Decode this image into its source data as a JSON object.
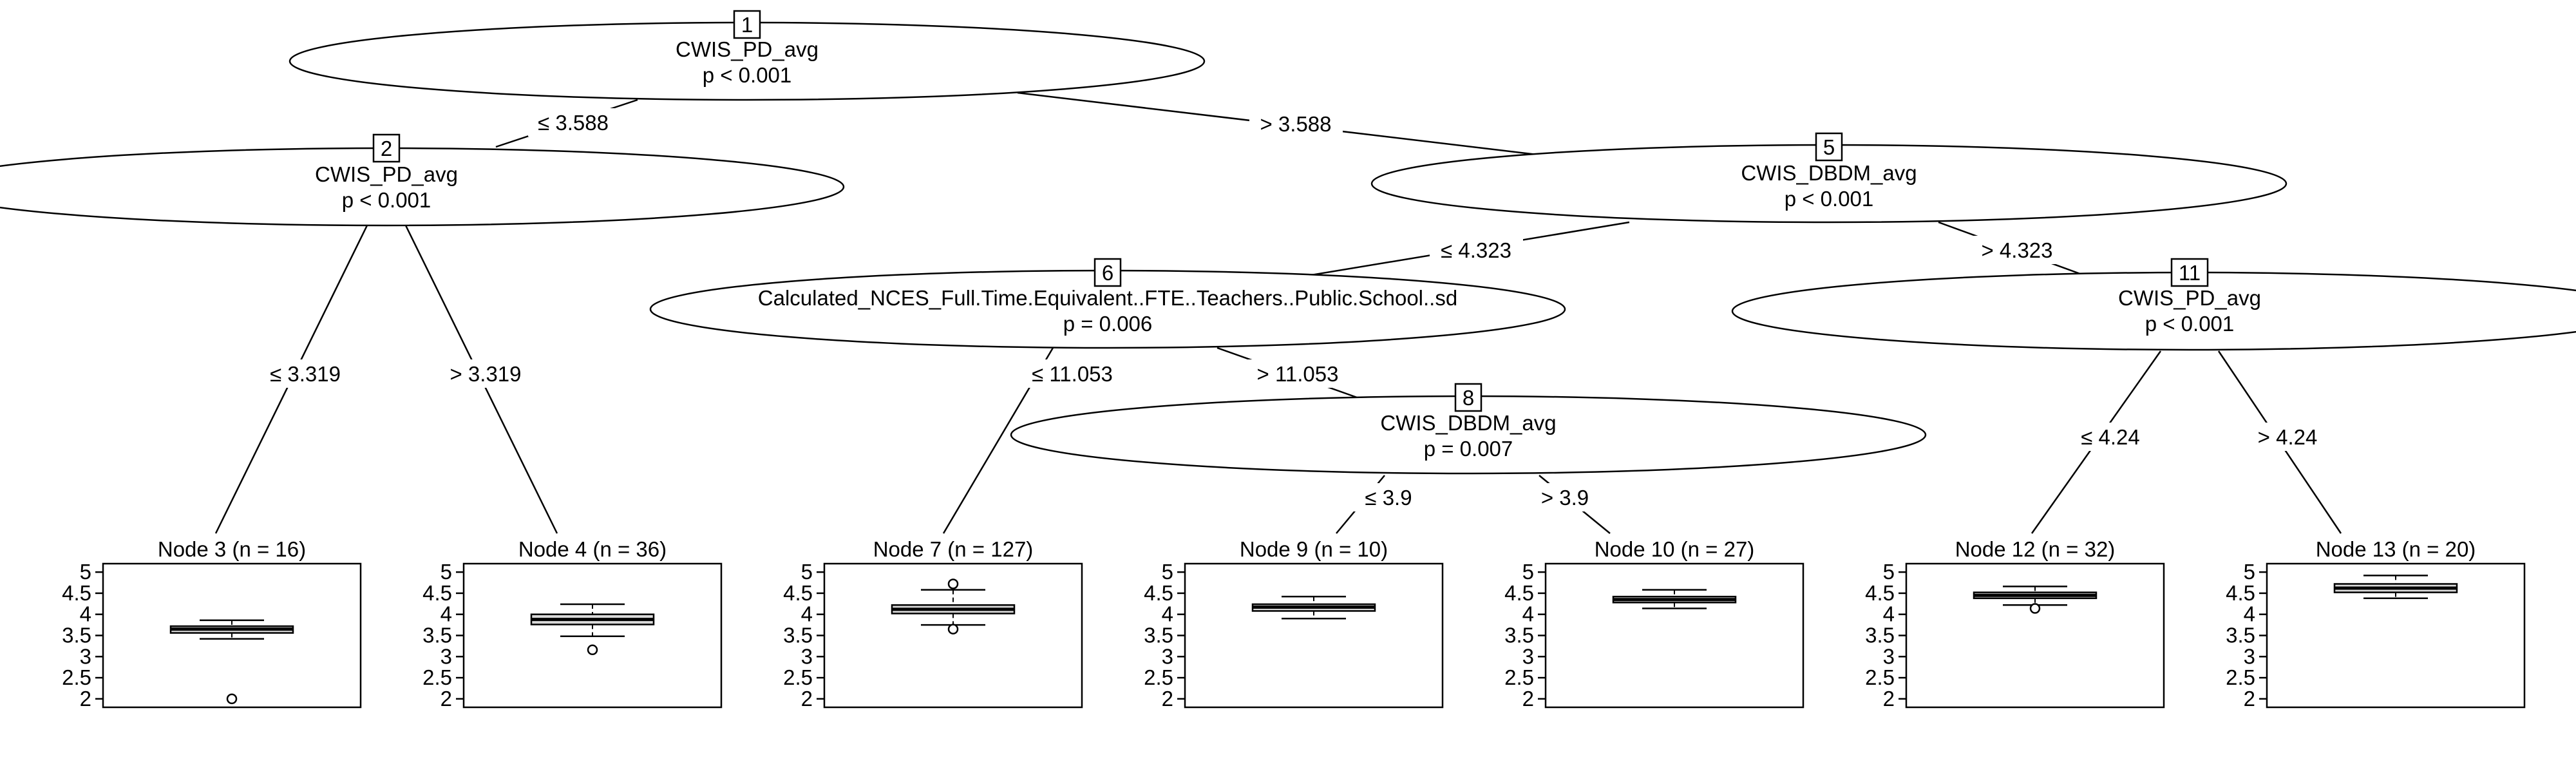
{
  "inner_nodes": [
    {
      "id": "1",
      "variable": "CWIS_PD_avg",
      "p": "p < 0.001"
    },
    {
      "id": "2",
      "variable": "CWIS_PD_avg",
      "p": "p < 0.001"
    },
    {
      "id": "5",
      "variable": "CWIS_DBDM_avg",
      "p": "p < 0.001"
    },
    {
      "id": "6",
      "variable": "Calculated_NCES_Full.Time.Equivalent..FTE..Teachers..Public.School..sd",
      "p": "p = 0.006"
    },
    {
      "id": "8",
      "variable": "CWIS_DBDM_avg",
      "p": "p = 0.007"
    },
    {
      "id": "11",
      "variable": "CWIS_PD_avg",
      "p": "p < 0.001"
    }
  ],
  "edges": [
    {
      "from": "1",
      "to": "2",
      "label": "≤ 3.588"
    },
    {
      "from": "1",
      "to": "5",
      "label": "> 3.588"
    },
    {
      "from": "2",
      "to": "3",
      "label": "≤ 3.319"
    },
    {
      "from": "2",
      "to": "4",
      "label": "> 3.319"
    },
    {
      "from": "5",
      "to": "6",
      "label": "≤ 4.323"
    },
    {
      "from": "5",
      "to": "11",
      "label": "> 4.323"
    },
    {
      "from": "6",
      "to": "7",
      "label": "≤ 11.053"
    },
    {
      "from": "6",
      "to": "8",
      "label": "> 11.053"
    },
    {
      "from": "8",
      "to": "9",
      "label": "≤ 3.9"
    },
    {
      "from": "8",
      "to": "10",
      "label": "> 3.9"
    },
    {
      "from": "11",
      "to": "12",
      "label": "≤ 4.24"
    },
    {
      "from": "11",
      "to": "13",
      "label": "> 4.24"
    }
  ],
  "leaves": [
    {
      "id": "3",
      "title": "Node 3 (n = 16)",
      "box": {
        "min": 3.42,
        "q1": 3.56,
        "median": 3.65,
        "q3": 3.72,
        "max": 3.86,
        "outliers": [
          2.0
        ]
      }
    },
    {
      "id": "4",
      "title": "Node 4 (n = 36)",
      "box": {
        "min": 3.48,
        "q1": 3.76,
        "median": 3.88,
        "q3": 4.0,
        "max": 4.24,
        "outliers": [
          3.16
        ]
      }
    },
    {
      "id": "7",
      "title": "Node 7 (n = 127)",
      "box": {
        "min": 3.75,
        "q1": 4.02,
        "median": 4.12,
        "q3": 4.22,
        "max": 4.58,
        "outliers": [
          3.65,
          4.72
        ]
      }
    },
    {
      "id": "9",
      "title": "Node 9 (n = 10)",
      "box": {
        "min": 3.9,
        "q1": 4.08,
        "median": 4.17,
        "q3": 4.24,
        "max": 4.42,
        "outliers": []
      }
    },
    {
      "id": "10",
      "title": "Node 10 (n = 27)",
      "box": {
        "min": 4.14,
        "q1": 4.28,
        "median": 4.35,
        "q3": 4.42,
        "max": 4.58,
        "outliers": []
      }
    },
    {
      "id": "12",
      "title": "Node 12 (n = 32)",
      "box": {
        "min": 4.22,
        "q1": 4.38,
        "median": 4.45,
        "q3": 4.52,
        "max": 4.66,
        "outliers": [
          4.14
        ]
      }
    },
    {
      "id": "13",
      "title": "Node 13 (n = 20)",
      "box": {
        "min": 4.38,
        "q1": 4.52,
        "median": 4.62,
        "q3": 4.72,
        "max": 4.92,
        "outliers": []
      }
    }
  ],
  "y_axis": {
    "ticks": [
      "2",
      "2.5",
      "3",
      "3.5",
      "4",
      "4.5",
      "5"
    ],
    "range": [
      1.8,
      5.2
    ]
  }
}
